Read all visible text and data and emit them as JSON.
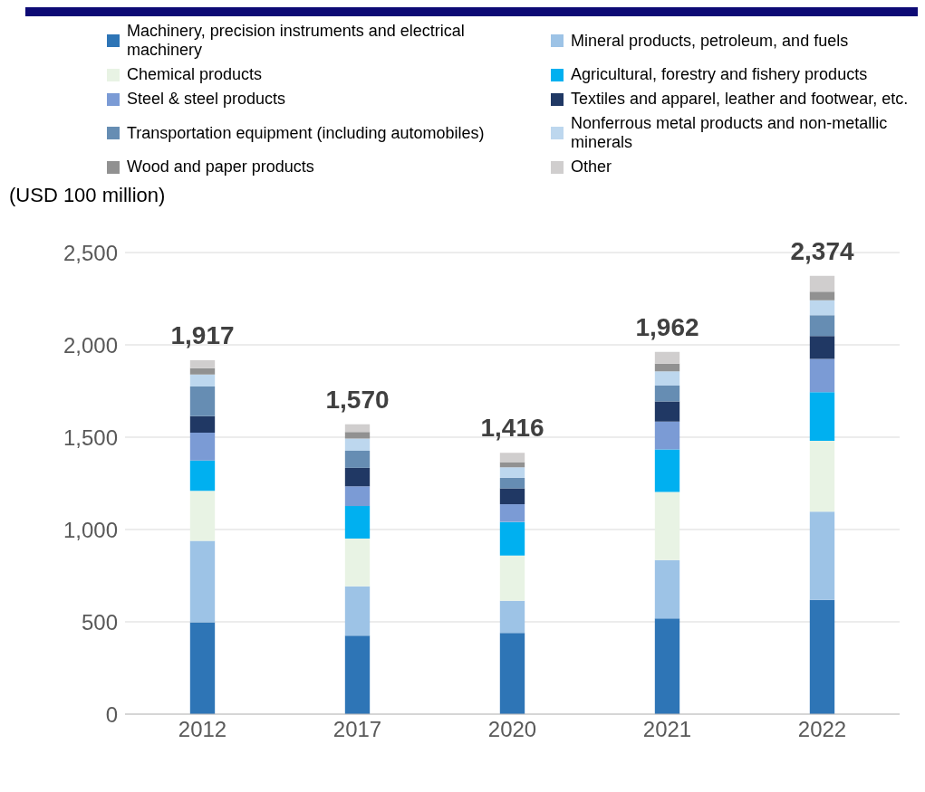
{
  "chart_data": {
    "type": "bar",
    "stacked": true,
    "ylabel": "(USD 100 million)",
    "categories": [
      "2012",
      "2017",
      "2020",
      "2021",
      "2022"
    ],
    "series": [
      {
        "name": "Machinery, precision instruments and electrical machinery",
        "color": "#2e75b6",
        "values": [
          497,
          425,
          440,
          518,
          619
        ]
      },
      {
        "name": "Mineral products, petroleum, and fuels",
        "color": "#9dc3e6",
        "values": [
          442,
          268,
          174,
          316,
          478
        ]
      },
      {
        "name": "Chemical products",
        "color": "#e8f3e4",
        "values": [
          271,
          258,
          245,
          369,
          383
        ]
      },
      {
        "name": "Agricultural, forestry and fishery products",
        "color": "#00b0f0",
        "values": [
          164,
          176,
          182,
          231,
          264
        ]
      },
      {
        "name": "Steel & steel products",
        "color": "#7b9bd5",
        "values": [
          150,
          107,
          96,
          151,
          180
        ]
      },
      {
        "name": "Textiles and apparel, leather and footwear, etc.",
        "color": "#203864",
        "values": [
          90,
          100,
          86,
          109,
          124
        ]
      },
      {
        "name": "Transportation equipment (including automobiles)",
        "color": "#668db3",
        "values": [
          161,
          92,
          57,
          86,
          112
        ]
      },
      {
        "name": "Nonferrous metal products and non-metallic minerals",
        "color": "#bdd7ee",
        "values": [
          65,
          67,
          57,
          77,
          82
        ]
      },
      {
        "name": "Wood and paper products",
        "color": "#919191",
        "values": [
          34,
          35,
          28,
          41,
          46
        ]
      },
      {
        "name": "Other",
        "color": "#d0cece",
        "values": [
          43,
          42,
          51,
          64,
          86
        ]
      }
    ],
    "totals": [
      "1,917",
      "1,570",
      "1,416",
      "1,962",
      "2,374"
    ],
    "ylim": [
      0,
      2500
    ],
    "yticks": [
      0,
      500,
      {
        "value": 1000,
        "label": "1,000"
      },
      {
        "value": 1500,
        "label": "1,500"
      },
      {
        "value": 2000,
        "label": "2,000"
      },
      {
        "value": 2500,
        "label": "2,500"
      }
    ],
    "grid": "y",
    "legend": "top"
  }
}
